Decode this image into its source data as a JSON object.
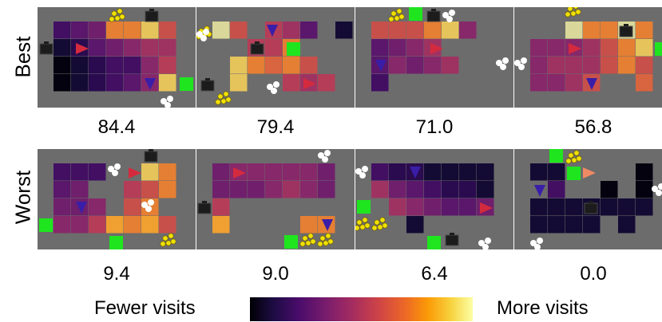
{
  "rows": [
    {
      "label": "Best",
      "scores": [
        "84.4",
        "79.4",
        "71.0",
        "56.8"
      ]
    },
    {
      "label": "Worst",
      "scores": [
        "9.4",
        "9.0",
        "6.4",
        "0.0"
      ]
    }
  ],
  "legend": {
    "low_label": "Fewer visits",
    "high_label": "More visits"
  },
  "colors": {
    "floor": "#6c6c6c",
    "goal": "#1fe51f",
    "coin": "#f0e000",
    "arrow_red": "#d42a3e",
    "arrow_blue": "#3a1ea8"
  }
}
